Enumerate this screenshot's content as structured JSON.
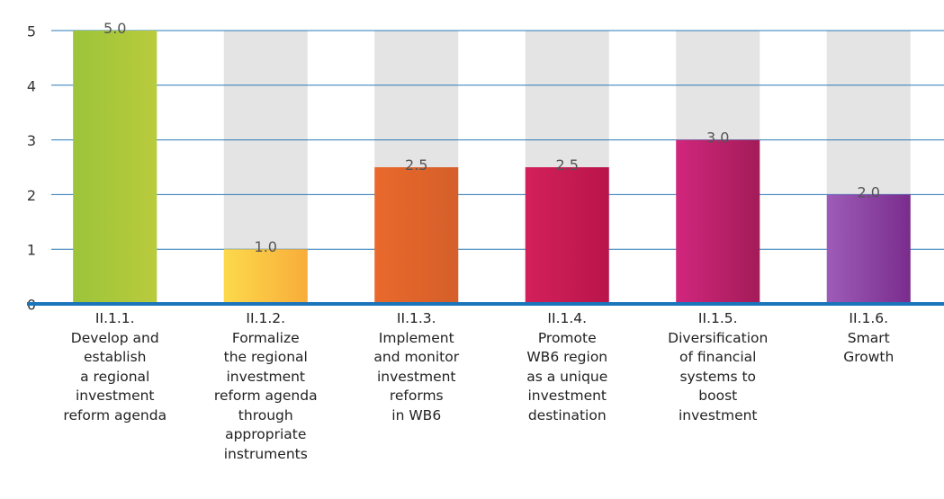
{
  "chart_data": {
    "type": "bar",
    "categories": [
      "II.1.1.\nDevelop and\nestablish\na regional\ninvestment\nreform agenda",
      "II.1.2.\nFormalize\nthe regional\ninvestment\nreform agenda\nthrough\nappropriate\ninstruments",
      "II.1.3.\nImplement\nand monitor\ninvestment\nreforms\nin WB6",
      "II.1.4.\nPromote\nWB6 region\nas a unique\ninvestment\ndestination",
      "II.1.5.\nDiversification\nof financial\nsystems to\nboost\ninvestment",
      "II.1.6.\nSmart\nGrowth"
    ],
    "values": [
      5,
      1,
      2.5,
      2.5,
      3,
      2
    ],
    "value_labels": [
      "5.0",
      "1.0",
      "2.5",
      "2.5",
      "3.0",
      "2.0"
    ],
    "colors": [
      [
        "#9cc43a",
        "#b9cb3c"
      ],
      [
        "#fdd94b",
        "#f8ad3a"
      ],
      [
        "#e9692b",
        "#d55f2a"
      ],
      [
        "#d3205a",
        "#b9154a"
      ],
      [
        "#d1267d",
        "#a31c58"
      ],
      [
        "#9d5cb8",
        "#7a2c8d"
      ]
    ],
    "background_color": "#e4e4e4",
    "ylim": [
      0,
      5
    ],
    "yticks": [
      0,
      1,
      2,
      3,
      4,
      5
    ],
    "grid": true
  }
}
